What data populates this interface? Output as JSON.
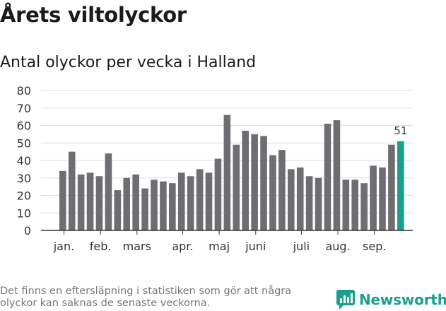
{
  "header": {
    "title": "Årets viltolyckor",
    "subtitle": "Antal olyckor per vecka i Halland"
  },
  "chart_data": {
    "type": "bar",
    "title": "Årets viltolyckor",
    "subtitle": "Antal olyckor per vecka i Halland",
    "xlabel": "",
    "ylabel": "",
    "ylim": [
      0,
      80
    ],
    "yticks": [
      0,
      10,
      20,
      30,
      40,
      50,
      60,
      70,
      80
    ],
    "grid": true,
    "month_labels": [
      "jan.",
      "feb.",
      "mars",
      "apr.",
      "maj",
      "juni",
      "juli",
      "aug.",
      "sep."
    ],
    "month_label_after_bar": [
      0.5,
      4.5,
      8.5,
      13.5,
      17.5,
      21.5,
      26.5,
      30.5,
      34.5
    ],
    "values": [
      34,
      45,
      32,
      33,
      31,
      44,
      23,
      30,
      32,
      24,
      29,
      28,
      27,
      33,
      31,
      35,
      33,
      41,
      66,
      49,
      57,
      55,
      54,
      43,
      46,
      35,
      36,
      31,
      30,
      61,
      63,
      29,
      29,
      27,
      37,
      36,
      49,
      51
    ],
    "highlight_index": 37,
    "highlight_label": "51",
    "colors": {
      "bar": "#6e6d72",
      "highlight": "#1a9e8e",
      "grid": "#dddddd",
      "axis": "#333333"
    }
  },
  "footer": {
    "note": "Det finns en eftersläpning i statistiken som gör att några olyckor kan saknas de senaste veckorna.",
    "brand": "Newsworthy",
    "brand_color": "#1a9e8e",
    "brand_icon": "bar-chart-logo-icon"
  }
}
